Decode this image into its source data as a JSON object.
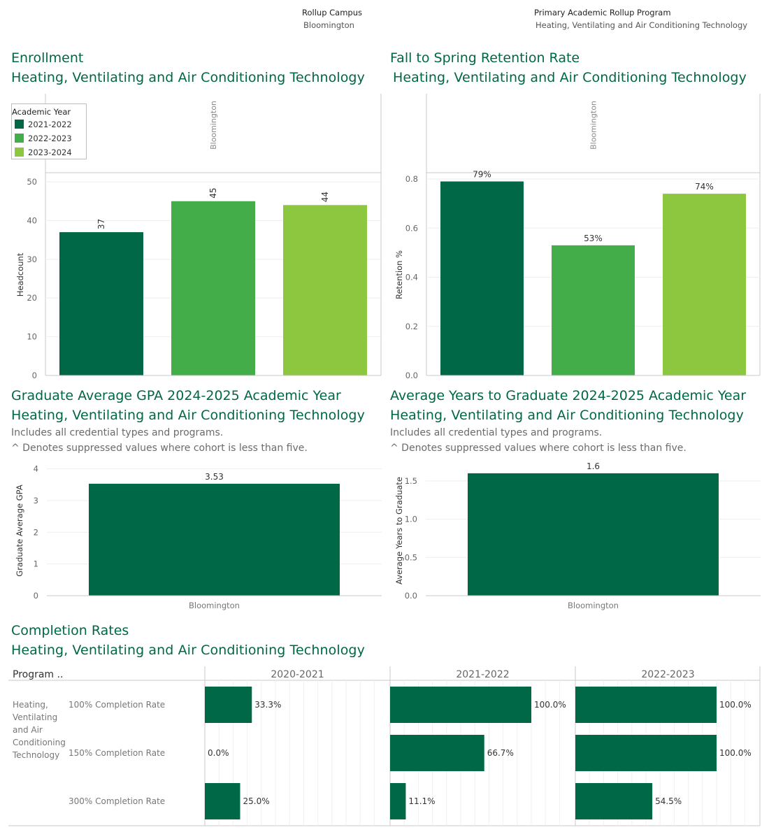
{
  "filters": {
    "campus": {
      "label": "Rollup Campus",
      "value": "Bloomington"
    },
    "program": {
      "label": "Primary Academic Rollup Program",
      "value": "Heating, Ventilating and Air Conditioning Technology"
    }
  },
  "colors": {
    "y2021": "#006747",
    "y2022": "#43ad49",
    "y2023": "#8dc63f",
    "title": "#006747"
  },
  "enrollment": {
    "title": "Enrollment",
    "subtitle": "Heating, Ventilating and Air Conditioning Technology",
    "legend": {
      "title": "Academic Year",
      "items": [
        "2021-2022",
        "2022-2023",
        "2023-2024"
      ]
    }
  },
  "retention": {
    "title": "Fall to Spring Retention Rate",
    "subtitle": "Heating, Ventilating and Air Conditioning Technology"
  },
  "gpa": {
    "title": "Graduate Average GPA 2024-2025 Academic Year",
    "subtitle": "Heating, Ventilating and Air Conditioning Technology",
    "note1": "Includes all credential types and programs.",
    "note2": "^ Denotes suppressed values where cohort is less than five."
  },
  "years": {
    "title": "Average Years to Graduate 2024-2025 Academic Year",
    "subtitle": "Heating, Ventilating and Air Conditioning Technology",
    "note1": "Includes all credential types and programs.",
    "note2": "^ Denotes suppressed values where cohort is less than five."
  },
  "completion": {
    "title": "Completion Rates",
    "subtitle": "Heating, Ventilating and Air Conditioning Technology",
    "header_label": "Program ..",
    "program_label": [
      "Heating,",
      "Ventilating",
      "and Air",
      "Conditioning",
      "Technology"
    ]
  },
  "chart_data": [
    {
      "id": "enrollment",
      "type": "bar",
      "panel": "Bloomington",
      "categories": [
        "2021-2022",
        "2022-2023",
        "2023-2024"
      ],
      "values": [
        37,
        45,
        44
      ],
      "labels": [
        "37",
        "45",
        "44"
      ],
      "ylabel": "Headcount",
      "ylim": [
        0,
        52
      ],
      "yticks": [
        0,
        10,
        20,
        30,
        40,
        50
      ]
    },
    {
      "id": "retention",
      "type": "bar",
      "panel": "Bloomington",
      "categories": [
        "2021-2022",
        "2022-2023",
        "2023-2024"
      ],
      "values": [
        0.79,
        0.53,
        0.74
      ],
      "labels": [
        "79%",
        "53%",
        "74%"
      ],
      "ylabel": "Retention %",
      "ylim": [
        0,
        0.82
      ],
      "yticks": [
        "0.0",
        "0.2",
        "0.4",
        "0.6",
        "0.8"
      ]
    },
    {
      "id": "gpa",
      "type": "bar",
      "categories": [
        "Bloomington"
      ],
      "values": [
        3.53
      ],
      "labels": [
        "3.53"
      ],
      "ylabel": "Graduate Average GPA",
      "ylim": [
        0,
        4.1
      ],
      "yticks": [
        "0",
        "1",
        "2",
        "3",
        "4"
      ]
    },
    {
      "id": "years",
      "type": "bar",
      "categories": [
        "Bloomington"
      ],
      "values": [
        1.6
      ],
      "labels": [
        "1.6"
      ],
      "ylabel": "Average Years to Graduate",
      "ylim": [
        0,
        1.7
      ],
      "yticks": [
        "0.0",
        "0.5",
        "1.0",
        "1.5"
      ]
    },
    {
      "id": "completion",
      "type": "bar",
      "orientation": "horizontal",
      "program": "Heating, Ventilating and Air Conditioning Technology",
      "rows": [
        "100% Completion Rate",
        "150% Completion Rate",
        "300% Completion Rate"
      ],
      "columns": [
        "2020-2021",
        "2021-2022",
        "2022-2023"
      ],
      "values": [
        [
          0.333,
          1.0,
          1.0
        ],
        [
          0.0,
          0.667,
          1.0
        ],
        [
          0.25,
          0.111,
          0.545
        ]
      ],
      "labels": [
        [
          "33.3%",
          "100.0%",
          "100.0%"
        ],
        [
          "0.0%",
          "66.7%",
          "100.0%"
        ],
        [
          "25.0%",
          "11.1%",
          "54.5%"
        ]
      ],
      "xlim": [
        0,
        1.3
      ]
    }
  ]
}
